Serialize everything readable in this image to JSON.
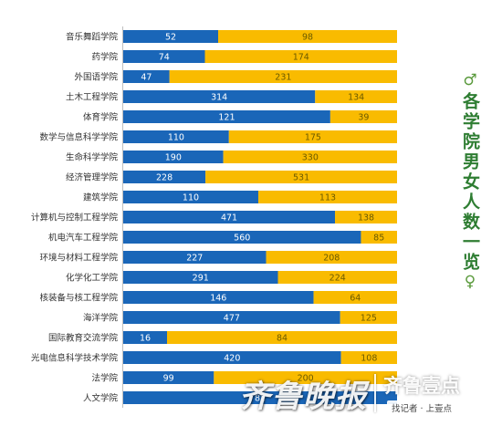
{
  "chart_data": {
    "type": "bar",
    "stacked": true,
    "orientation": "horizontal",
    "title": "各学院男女人数一览",
    "title_symbols": {
      "top": "♂",
      "bottom": "♀"
    },
    "categories": [
      "音乐舞蹈学院",
      "药学院",
      "外国语学院",
      "土木工程学院",
      "体育学院",
      "数学与信息科学学院",
      "生命科学学院",
      "经济管理学院",
      "建筑学院",
      "计算机与控制工程学院",
      "机电汽车工程学院",
      "环境与材料工程学院",
      "化学化工学院",
      "核装备与核工程学院",
      "海洋学院",
      "国际教育交流学院",
      "光电信息科学技术学院",
      "法学院",
      "人文学院"
    ],
    "series": [
      {
        "values": [
          52,
          74,
          47,
          314,
          121,
          110,
          190,
          228,
          110,
          471,
          560,
          227,
          291,
          146,
          477,
          16,
          420,
          99,
          82
        ],
        "color": "#1a66b8"
      },
      {
        "values": [
          98,
          174,
          231,
          134,
          39,
          175,
          330,
          531,
          113,
          138,
          85,
          208,
          224,
          64,
          125,
          84,
          108,
          200,
          ""
        ],
        "color": "#f9bb00"
      }
    ],
    "legend": "none",
    "grid": false
  },
  "watermark": {
    "main": "齐鲁晚报",
    "brand": "齐鲁壹点",
    "slogan": "找记者 · 上壹点"
  }
}
